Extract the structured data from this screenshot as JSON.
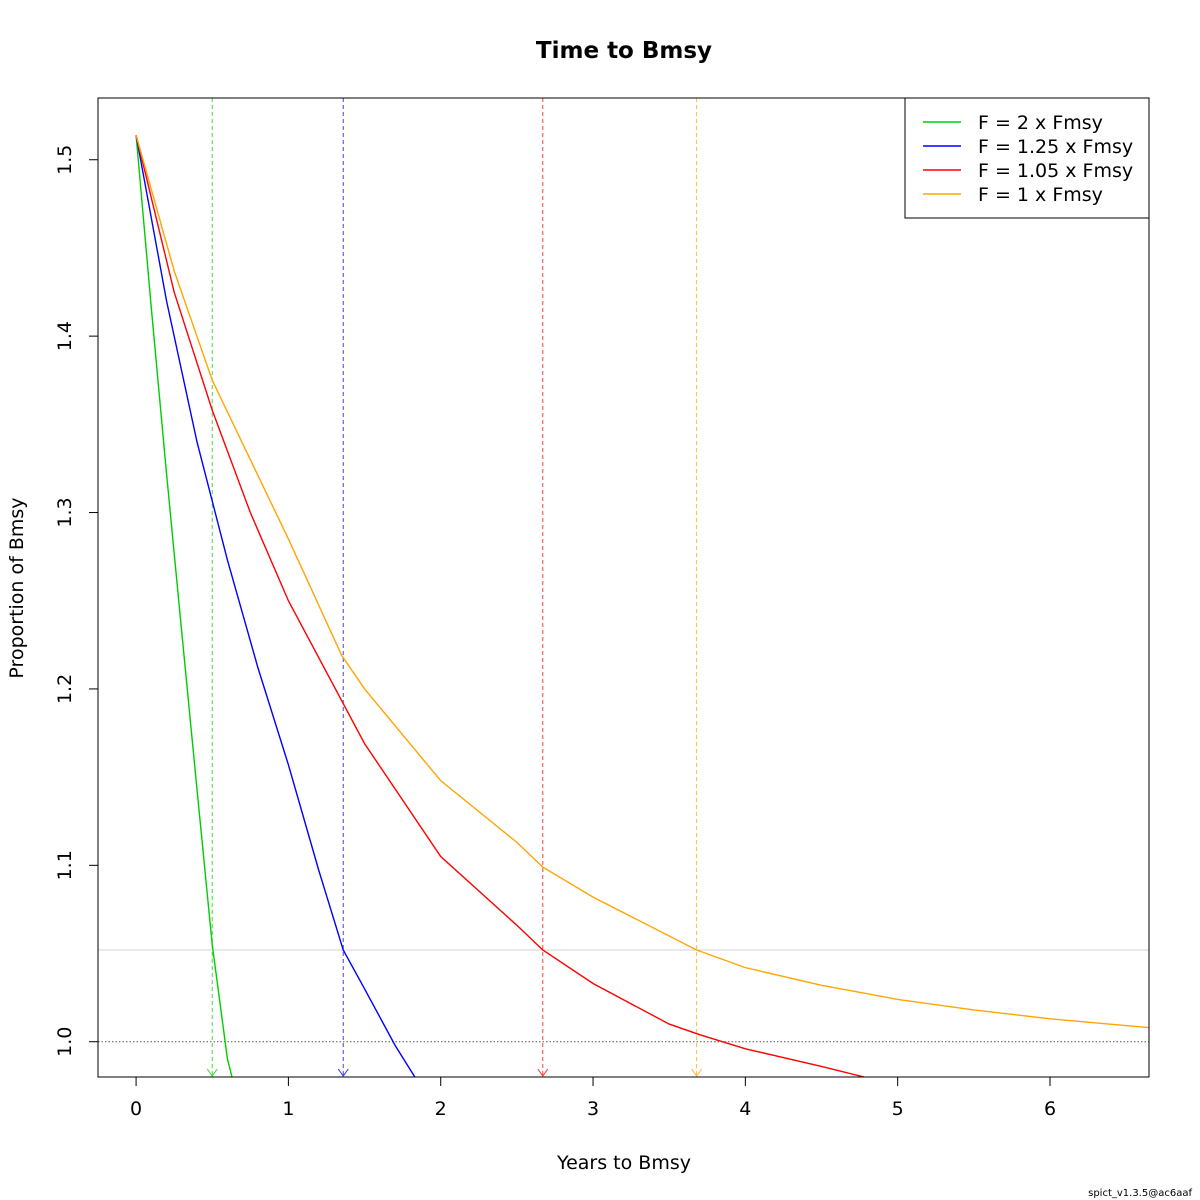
{
  "chart_data": {
    "type": "line",
    "title": "Time to Bmsy",
    "xlabel": "Years to Bmsy",
    "ylabel": "Proportion of Bmsy",
    "xlim": [
      -0.25,
      6.65
    ],
    "ylim": [
      0.98,
      1.535
    ],
    "x_ticks": [
      "0",
      "1",
      "2",
      "3",
      "4",
      "5",
      "6"
    ],
    "y_ticks": [
      "1.0",
      "1.1",
      "1.2",
      "1.3",
      "1.4",
      "1.5"
    ],
    "grid": false,
    "legend_position": "top-right",
    "reference_lines": {
      "bmsy_level": 1.0,
      "threshold_level": 1.052
    },
    "series": [
      {
        "name": "F = 2 x Fmsy",
        "color": "#00CD00",
        "time_to_threshold": 0.5,
        "x": [
          0,
          0.1,
          0.2,
          0.3,
          0.4,
          0.5,
          0.6,
          0.63
        ],
        "y": [
          1.514,
          1.416,
          1.322,
          1.232,
          1.143,
          1.055,
          0.99,
          0.98
        ]
      },
      {
        "name": "F = 1.25 x Fmsy",
        "color": "#0000FF",
        "time_to_threshold": 1.36,
        "x": [
          0,
          0.2,
          0.4,
          0.6,
          0.8,
          1.0,
          1.2,
          1.36,
          1.5,
          1.7,
          1.83
        ],
        "y": [
          1.514,
          1.42,
          1.34,
          1.273,
          1.212,
          1.157,
          1.097,
          1.052,
          1.03,
          0.998,
          0.98
        ]
      },
      {
        "name": "F = 1.05 x Fmsy",
        "color": "#FF0000",
        "time_to_threshold": 2.67,
        "x": [
          0,
          0.25,
          0.5,
          0.75,
          1.0,
          1.5,
          2.0,
          2.5,
          2.67,
          3.0,
          3.5,
          3.7,
          4.0,
          4.5,
          4.78
        ],
        "y": [
          1.514,
          1.425,
          1.358,
          1.3,
          1.25,
          1.169,
          1.105,
          1.066,
          1.052,
          1.033,
          1.01,
          1.004,
          0.996,
          0.986,
          0.98
        ]
      },
      {
        "name": "F = 1 x Fmsy",
        "color": "#FFA500",
        "time_to_threshold": 3.68,
        "x": [
          0,
          0.25,
          0.5,
          1.0,
          1.35,
          1.5,
          2.0,
          2.5,
          2.67,
          3.0,
          3.68,
          4.0,
          4.5,
          5.0,
          5.5,
          6.0,
          6.65
        ],
        "y": [
          1.514,
          1.437,
          1.375,
          1.285,
          1.219,
          1.2,
          1.148,
          1.113,
          1.099,
          1.082,
          1.052,
          1.042,
          1.032,
          1.024,
          1.018,
          1.013,
          1.008
        ]
      }
    ]
  },
  "footer": "spict_v1.3.5@ac6aaf"
}
